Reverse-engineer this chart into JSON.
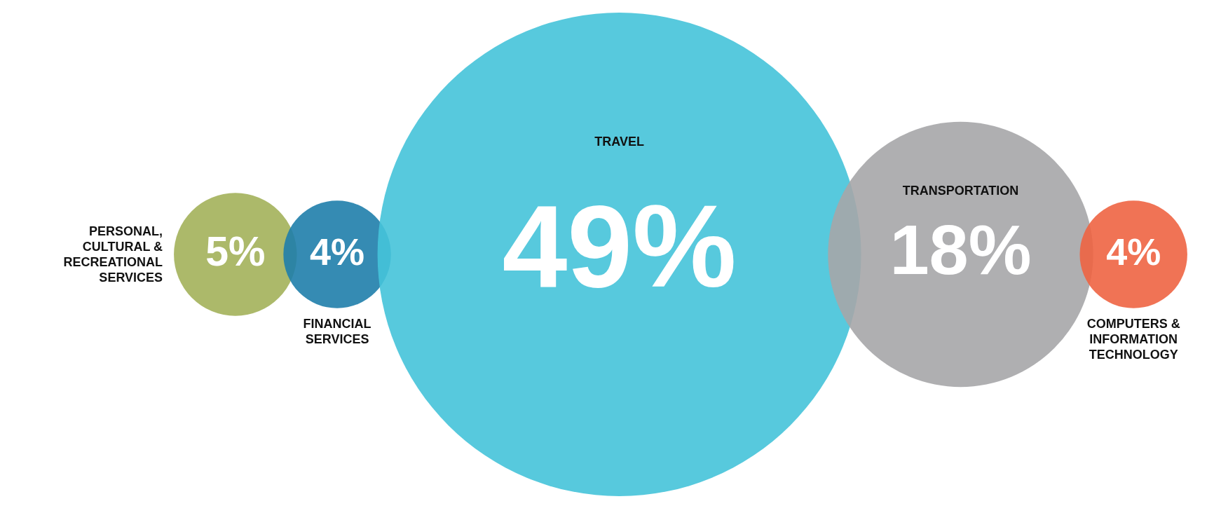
{
  "chart_data": {
    "type": "other",
    "categories": [
      "PERSONAL, CULTURAL & RECREATIONAL SERVICES",
      "FINANCIAL SERVICES",
      "TRAVEL",
      "TRANSPORTATION",
      "COMPUTERS & INFORMATION TECHNOLOGY"
    ],
    "values": [
      5,
      4,
      49,
      18,
      4
    ],
    "value_labels": [
      "5%",
      "4%",
      "49%",
      "18%",
      "4%"
    ],
    "colors": [
      "#a3b15a",
      "#1f7eab",
      "#45c3d9",
      "#a6a6a8",
      "#ee6443"
    ]
  }
}
